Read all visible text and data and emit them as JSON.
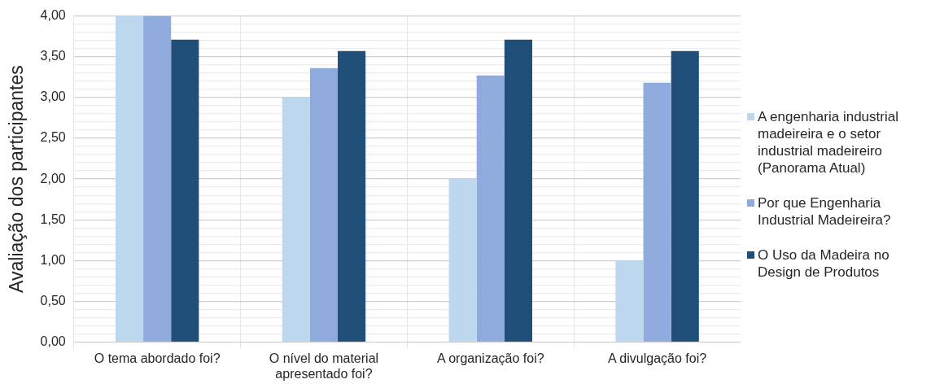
{
  "chart_data": {
    "type": "bar",
    "ylabel": "Avaliação dos participantes",
    "categories": [
      "O tema abordado foi?",
      "O nível do material apresentado foi?",
      "A organização foi?",
      "A divulgação foi?"
    ],
    "series": [
      {
        "name": "A engenharia industrial madeireira e o setor industrial madeireiro (Panorama Atual)",
        "color": "#bdd7ee",
        "values": [
          4.0,
          3.0,
          2.0,
          1.0
        ]
      },
      {
        "name": "Por que Engenharia Industrial Madeireira?",
        "color": "#8faadc",
        "values": [
          4.0,
          3.36,
          3.27,
          3.18
        ]
      },
      {
        "name": "O Uso da Madeira no Design de Produtos",
        "color": "#1f4e79",
        "values": [
          3.71,
          3.57,
          3.71,
          3.57
        ]
      }
    ],
    "ylim": [
      0,
      4
    ],
    "yticks": [
      {
        "value": 0,
        "label": "0,00"
      },
      {
        "value": 0.1,
        "label": null
      },
      {
        "value": 0.2,
        "label": null
      },
      {
        "value": 0.3,
        "label": null
      },
      {
        "value": 0.4,
        "label": null
      },
      {
        "value": 0.5,
        "label": "0,50"
      },
      {
        "value": 0.6,
        "label": null
      },
      {
        "value": 0.7,
        "label": null
      },
      {
        "value": 0.8,
        "label": null
      },
      {
        "value": 0.9,
        "label": null
      },
      {
        "value": 1,
        "label": "1,00"
      },
      {
        "value": 1.1,
        "label": null
      },
      {
        "value": 1.2,
        "label": null
      },
      {
        "value": 1.3,
        "label": null
      },
      {
        "value": 1.4,
        "label": null
      },
      {
        "value": 1.5,
        "label": "1,50"
      },
      {
        "value": 1.6,
        "label": null
      },
      {
        "value": 1.7,
        "label": null
      },
      {
        "value": 1.8,
        "label": null
      },
      {
        "value": 1.9,
        "label": null
      },
      {
        "value": 2,
        "label": "2,00"
      },
      {
        "value": 2.1,
        "label": null
      },
      {
        "value": 2.2,
        "label": null
      },
      {
        "value": 2.3,
        "label": null
      },
      {
        "value": 2.4,
        "label": null
      },
      {
        "value": 2.5,
        "label": "2,50"
      },
      {
        "value": 2.6,
        "label": null
      },
      {
        "value": 2.7,
        "label": null
      },
      {
        "value": 2.8,
        "label": null
      },
      {
        "value": 2.9,
        "label": null
      },
      {
        "value": 3,
        "label": "3,00"
      },
      {
        "value": 3.1,
        "label": null
      },
      {
        "value": 3.2,
        "label": null
      },
      {
        "value": 3.3,
        "label": null
      },
      {
        "value": 3.4,
        "label": null
      },
      {
        "value": 3.5,
        "label": "3,50"
      },
      {
        "value": 3.6,
        "label": null
      },
      {
        "value": 3.7,
        "label": null
      },
      {
        "value": 3.8,
        "label": null
      },
      {
        "value": 3.9,
        "label": null
      },
      {
        "value": 4,
        "label": "4,00"
      }
    ],
    "grid": true,
    "legend": "right"
  }
}
